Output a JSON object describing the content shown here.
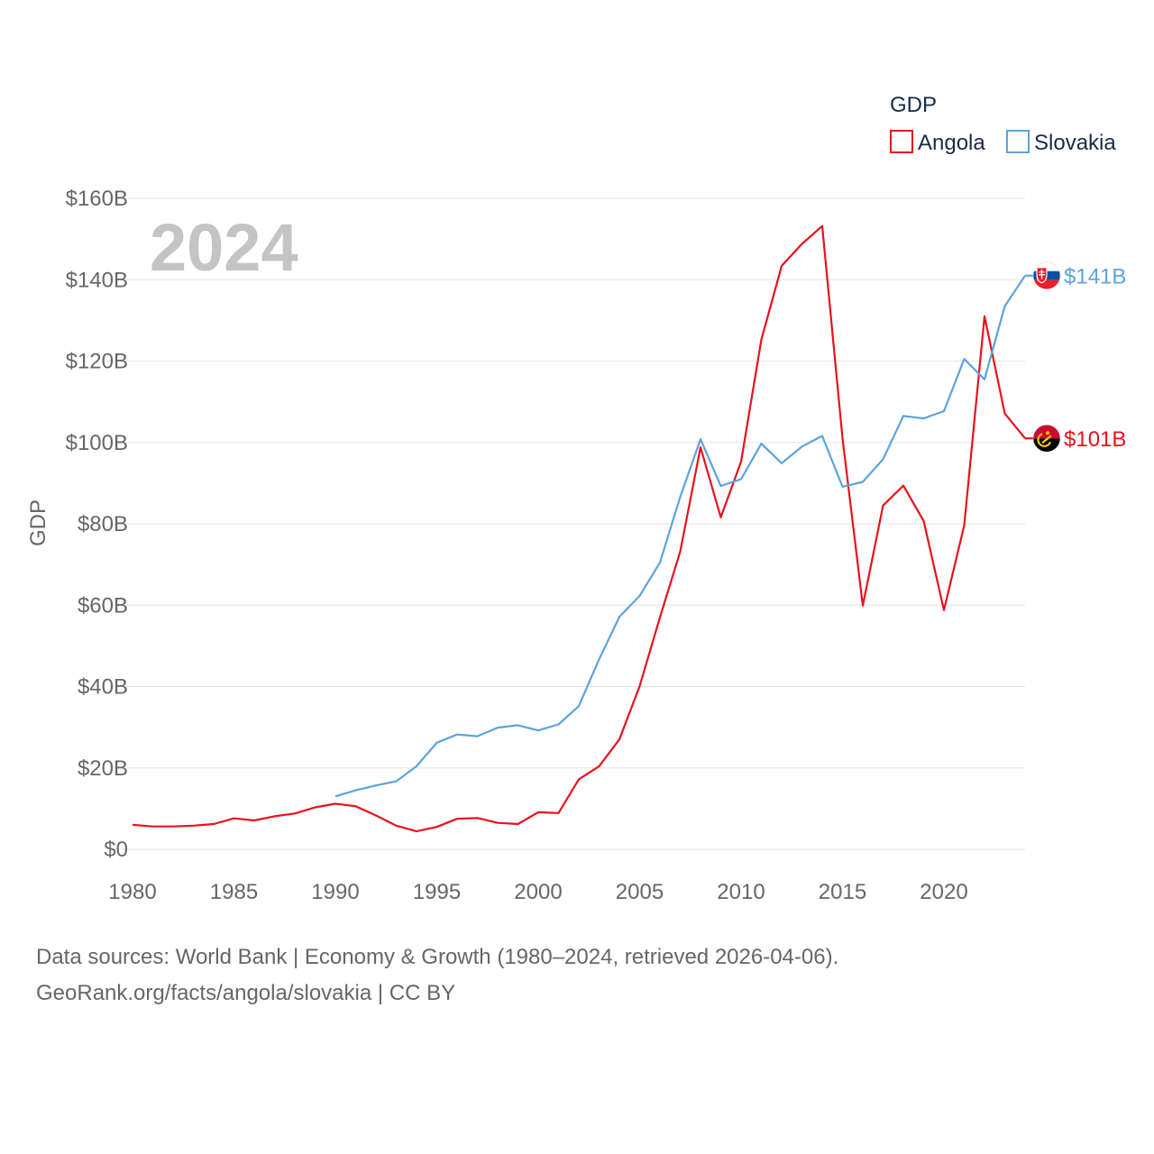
{
  "chart_data": {
    "type": "line",
    "title": "GDP",
    "ylabel": "GDP",
    "xlabel": "",
    "year_label": "2024",
    "xlim": [
      1980,
      2024
    ],
    "ylim": [
      0,
      160
    ],
    "y_unit": "billion USD",
    "y_ticks": [
      0,
      20,
      40,
      60,
      80,
      100,
      120,
      140,
      160
    ],
    "y_tick_labels": [
      "$0",
      "$20B",
      "$40B",
      "$60B",
      "$80B",
      "$100B",
      "$120B",
      "$140B",
      "$160B"
    ],
    "x_ticks": [
      1980,
      1985,
      1990,
      1995,
      2000,
      2005,
      2010,
      2015,
      2020
    ],
    "x_tick_labels": [
      "1980",
      "1985",
      "1990",
      "1995",
      "2000",
      "2005",
      "2010",
      "2015",
      "2020"
    ],
    "legend_title": "GDP",
    "legend_position": "top-right",
    "series": [
      {
        "name": "Angola",
        "color": "#e8111b",
        "end_label": "$101B",
        "years": [
          1980,
          1981,
          1982,
          1983,
          1984,
          1985,
          1986,
          1987,
          1988,
          1989,
          1990,
          1991,
          1992,
          1993,
          1994,
          1995,
          1996,
          1997,
          1998,
          1999,
          2000,
          2001,
          2002,
          2003,
          2004,
          2005,
          2006,
          2007,
          2008,
          2009,
          2010,
          2011,
          2012,
          2013,
          2014,
          2015,
          2016,
          2017,
          2018,
          2019,
          2020,
          2021,
          2022,
          2023,
          2024
        ],
        "values": [
          6.0,
          5.6,
          5.6,
          5.8,
          6.2,
          7.6,
          7.1,
          8.1,
          8.8,
          10.3,
          11.2,
          10.6,
          8.3,
          5.8,
          4.4,
          5.5,
          7.5,
          7.7,
          6.5,
          6.2,
          9.1,
          8.9,
          17.2,
          20.4,
          27.0,
          40.1,
          57.0,
          73.2,
          98.8,
          81.6,
          95.3,
          125.3,
          143.4,
          148.8,
          153.2,
          101.0,
          59.9,
          84.5,
          89.4,
          80.7,
          58.8,
          79.6,
          131.0,
          107.1,
          101.0
        ]
      },
      {
        "name": "Slovakia",
        "color": "#5ba3e0",
        "end_label": "$141B",
        "years": [
          1990,
          1991,
          1992,
          1993,
          1994,
          1995,
          1996,
          1997,
          1998,
          1999,
          2000,
          2001,
          2002,
          2003,
          2004,
          2005,
          2006,
          2007,
          2008,
          2009,
          2010,
          2011,
          2012,
          2013,
          2014,
          2015,
          2016,
          2017,
          2018,
          2019,
          2020,
          2021,
          2022,
          2023,
          2024
        ],
        "values": [
          13.0,
          14.5,
          15.7,
          16.7,
          20.4,
          26.2,
          28.2,
          27.8,
          29.9,
          30.5,
          29.2,
          30.7,
          35.2,
          46.7,
          57.1,
          62.3,
          70.5,
          86.6,
          100.8,
          89.3,
          91.0,
          99.7,
          94.9,
          99.0,
          101.6,
          89.1,
          90.3,
          95.9,
          106.5,
          105.9,
          107.7,
          120.5,
          115.5,
          133.5,
          141.0
        ]
      }
    ]
  },
  "footer": {
    "line1": "Data sources: World Bank | Economy & Growth (1980–2024, retrieved 2026-04-06).",
    "line2": "GeoRank.org/facts/angola/slovakia | CC BY"
  }
}
